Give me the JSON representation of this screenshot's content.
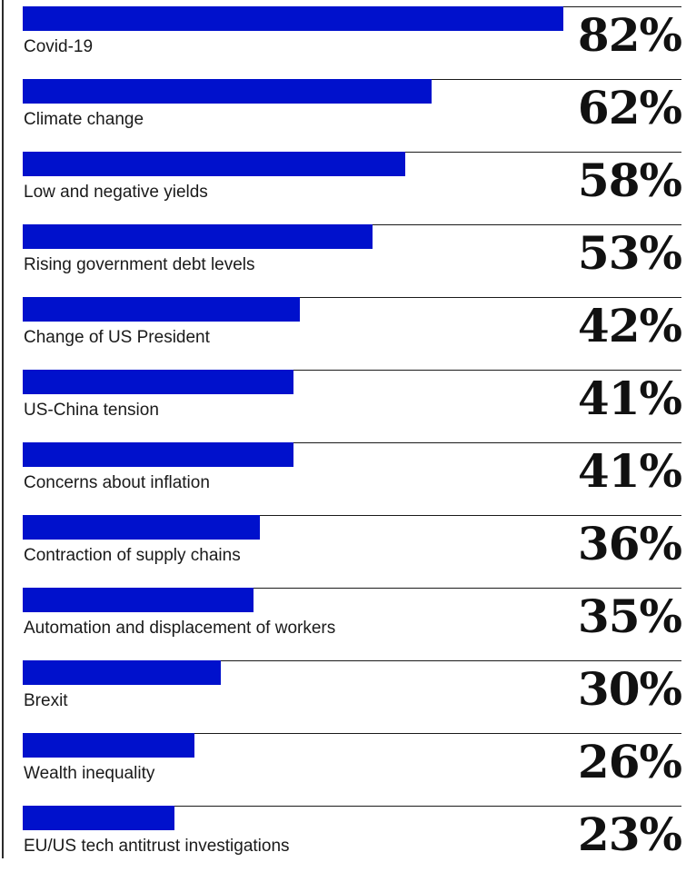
{
  "chart_data": {
    "type": "bar",
    "orientation": "horizontal",
    "categories": [
      "Covid-19",
      "Climate change",
      "Low and negative yields",
      "Rising government debt levels",
      "Change of US President",
      "US-China tension",
      "Concerns about inflation",
      "Contraction of supply chains",
      "Automation and displacement of workers",
      "Brexit",
      "Wealth inequality",
      "EU/US tech antitrust investigations"
    ],
    "values": [
      82,
      62,
      58,
      53,
      42,
      41,
      41,
      36,
      35,
      30,
      26,
      23
    ],
    "value_labels": [
      "82%",
      "62%",
      "58%",
      "53%",
      "42%",
      "41%",
      "41%",
      "36%",
      "35%",
      "30%",
      "26%",
      "23%"
    ],
    "xlim": [
      0,
      100
    ],
    "grid": false,
    "legend": "none",
    "bar_color": "#0011cc"
  }
}
